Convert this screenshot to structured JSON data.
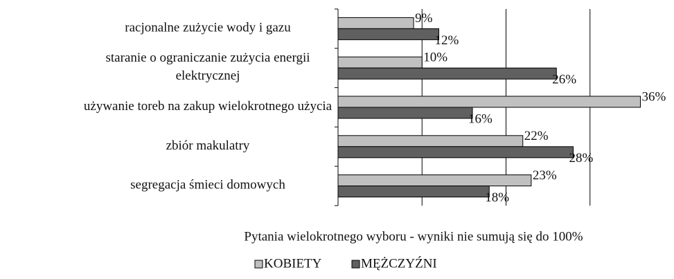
{
  "chart_data": {
    "type": "barh",
    "categories": [
      "racjonalne zużycie wody i gazu",
      "staranie o ograniczanie zużycia energii\nelektrycznej",
      "używanie toreb na zakup wielokrotnego użycia",
      "zbiór makulatry",
      "segregacja śmieci domowych"
    ],
    "series": [
      {
        "name": "KOBIETY",
        "color": "#c0c0c0",
        "values": [
          9,
          10,
          36,
          22,
          23
        ],
        "value_labels": [
          "9%",
          "10%",
          "36%",
          "22%",
          "23%"
        ]
      },
      {
        "name": "MĘŻCZYŹNI",
        "color": "#606060",
        "values": [
          12,
          26,
          16,
          28,
          18
        ],
        "value_labels": [
          "12%",
          "26%",
          "16%",
          "28%",
          "18%"
        ]
      }
    ],
    "xlim": [
      0,
      40
    ],
    "xticks": [
      10,
      20,
      30
    ],
    "grid": true,
    "note": "Pytania  wielokrotnego wyboru - wyniki nie sumują się do 100%",
    "legend": "bottom"
  }
}
